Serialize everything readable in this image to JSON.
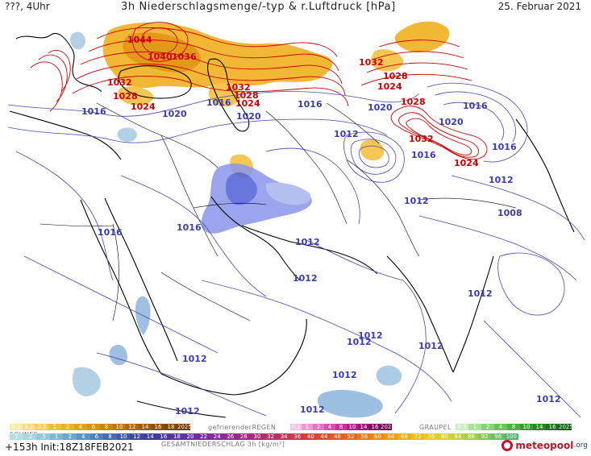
{
  "header": {
    "left": "???, 4Uhr",
    "title": "3h Niederschlagsmenge/-typ & r.Luftdruck [hPa]",
    "date": "25. Februar 2021"
  },
  "footer": {
    "run": "+153h Init:18Z18FEB2021",
    "logo_main": "meteopool",
    "logo_suffix": ".org"
  },
  "colors": {
    "high_pressure": "#cc0000",
    "low_pressure": "#3b3bb3",
    "snow": "#e0a400",
    "rain": "#6a7ee8",
    "coast": "#000000"
  },
  "legend": {
    "snow_title": "SCHNEE",
    "snow_cells": [
      {
        "t": "0.1",
        "c": "#fbe9a6"
      },
      {
        "t": "0.2",
        "c": "#f8dc7a"
      },
      {
        "t": "0.5",
        "c": "#f5cf53"
      },
      {
        "t": "1",
        "c": "#f1c031"
      },
      {
        "t": "2",
        "c": "#eab21d"
      },
      {
        "t": "4",
        "c": "#e3a40f"
      },
      {
        "t": "6",
        "c": "#d99509"
      },
      {
        "t": "8",
        "c": "#cd8506"
      },
      {
        "t": "10",
        "c": "#c07604"
      },
      {
        "t": "12",
        "c": "#b26702"
      },
      {
        "t": "14",
        "c": "#a25a01"
      },
      {
        "t": "16",
        "c": "#924d00"
      },
      {
        "t": "18",
        "c": "#824200"
      },
      {
        "t": "2025+",
        "c": "#6f3700"
      }
    ],
    "freezing_title": "gefrierenderREGEN",
    "freezing_cells": [
      {
        "t": "0.1",
        "c": "#f7c3e4"
      },
      {
        "t": "1",
        "c": "#f09ad3"
      },
      {
        "t": "2",
        "c": "#e871c2"
      },
      {
        "t": "4",
        "c": "#df4db0"
      },
      {
        "t": "8",
        "c": "#d02e9c"
      },
      {
        "t": "10",
        "c": "#ba1c87"
      },
      {
        "t": "14",
        "c": "#a21073"
      },
      {
        "t": "16",
        "c": "#880760"
      },
      {
        "t": "2025+",
        "c": "#6d0250"
      }
    ],
    "graupel_title": "GRAUPEL",
    "graupel_cells": [
      {
        "t": "0.5",
        "c": "#c9eec0"
      },
      {
        "t": "1",
        "c": "#a5e398"
      },
      {
        "t": "2",
        "c": "#82d672"
      },
      {
        "t": "4",
        "c": "#61c852"
      },
      {
        "t": "8",
        "c": "#47b53a"
      },
      {
        "t": "10",
        "c": "#33a029"
      },
      {
        "t": "14",
        "c": "#238a1d"
      },
      {
        "t": "16",
        "c": "#167514"
      },
      {
        "t": "2025+",
        "c": "#0c600d"
      }
    ],
    "total_title": "GESAMTNIEDERSCHLAG 3h [kg/m²]",
    "total_cells": [
      {
        "t": "1",
        "c": "#b9dde5"
      },
      {
        "t": ".2",
        "c": "#a9d4e0"
      },
      {
        "t": ".5",
        "c": "#93c8dc"
      },
      {
        "t": "1",
        "c": "#7db9d6"
      },
      {
        "t": "2",
        "c": "#6aa9cf"
      },
      {
        "t": "4",
        "c": "#5995c6"
      },
      {
        "t": "6",
        "c": "#4d80bd"
      },
      {
        "t": "8",
        "c": "#446bb3"
      },
      {
        "t": "10",
        "c": "#4059aa"
      },
      {
        "t": "12",
        "c": "#3f49a1"
      },
      {
        "t": "14",
        "c": "#3d3c98"
      },
      {
        "t": "16",
        "c": "#4a37a0"
      },
      {
        "t": "18",
        "c": "#5b33a6"
      },
      {
        "t": "20",
        "c": "#6b2fa9"
      },
      {
        "t": "22",
        "c": "#7b2ba5"
      },
      {
        "t": "24",
        "c": "#8a289c"
      },
      {
        "t": "26",
        "c": "#982691"
      },
      {
        "t": "28",
        "c": "#a52684"
      },
      {
        "t": "30",
        "c": "#b12876"
      },
      {
        "t": "32",
        "c": "#bc2c67"
      },
      {
        "t": "34",
        "c": "#c63257"
      },
      {
        "t": "36",
        "c": "#cf3947"
      },
      {
        "t": "40",
        "c": "#d74238"
      },
      {
        "t": "44",
        "c": "#dd4d2c"
      },
      {
        "t": "48",
        "c": "#e35a22"
      },
      {
        "t": "52",
        "c": "#e8691a"
      },
      {
        "t": "56",
        "c": "#ec7914"
      },
      {
        "t": "60",
        "c": "#ef8a10"
      },
      {
        "t": "64",
        "c": "#f19b0e"
      },
      {
        "t": "68",
        "c": "#f1ac10"
      },
      {
        "t": "72",
        "c": "#efbd17"
      },
      {
        "t": "76",
        "c": "#e9cc22"
      },
      {
        "t": "80",
        "c": "#d8d22e"
      },
      {
        "t": "84",
        "c": "#bfd23b"
      },
      {
        "t": "88",
        "c": "#a2ce48"
      },
      {
        "t": "92",
        "c": "#84c856"
      },
      {
        "t": "96",
        "c": "#68c062"
      },
      {
        "t": "100",
        "c": "#4eb66d"
      }
    ]
  },
  "pressure_labels": [
    {
      "text": "1044",
      "type": "high"
    },
    {
      "text": "1040",
      "type": "high"
    },
    {
      "text": "1036",
      "type": "high"
    },
    {
      "text": "1032",
      "type": "high"
    },
    {
      "text": "1028",
      "type": "high"
    },
    {
      "text": "1024",
      "type": "high"
    },
    {
      "text": "1032",
      "type": "high"
    },
    {
      "text": "1028",
      "type": "high"
    },
    {
      "text": "1024",
      "type": "high"
    },
    {
      "text": "1032",
      "type": "high"
    },
    {
      "text": "1028",
      "type": "high"
    },
    {
      "text": "1024",
      "type": "high"
    },
    {
      "text": "1028",
      "type": "high"
    },
    {
      "text": "1032",
      "type": "high"
    },
    {
      "text": "1024",
      "type": "high"
    },
    {
      "text": "1016",
      "type": "low"
    },
    {
      "text": "1020",
      "type": "low"
    },
    {
      "text": "1016",
      "type": "low"
    },
    {
      "text": "1020",
      "type": "low"
    },
    {
      "text": "1016",
      "type": "low"
    },
    {
      "text": "1020",
      "type": "low"
    },
    {
      "text": "1020",
      "type": "low"
    },
    {
      "text": "1016",
      "type": "low"
    },
    {
      "text": "1016",
      "type": "low"
    },
    {
      "text": "1016",
      "type": "low"
    },
    {
      "text": "1012",
      "type": "low"
    },
    {
      "text": "1012",
      "type": "low"
    },
    {
      "text": "1008",
      "type": "low"
    },
    {
      "text": "1016",
      "type": "low"
    },
    {
      "text": "1016",
      "type": "low"
    },
    {
      "text": "1012",
      "type": "low"
    },
    {
      "text": "1012",
      "type": "low"
    },
    {
      "text": "1012",
      "type": "low"
    },
    {
      "text": "1012",
      "type": "low"
    },
    {
      "text": "1012",
      "type": "low"
    },
    {
      "text": "1012",
      "type": "low"
    },
    {
      "text": "1012",
      "type": "low"
    },
    {
      "text": "1012",
      "type": "low"
    },
    {
      "text": "1012",
      "type": "low"
    },
    {
      "text": "1012",
      "type": "low"
    },
    {
      "text": "1012",
      "type": "low"
    },
    {
      "text": "1012",
      "type": "low"
    }
  ]
}
